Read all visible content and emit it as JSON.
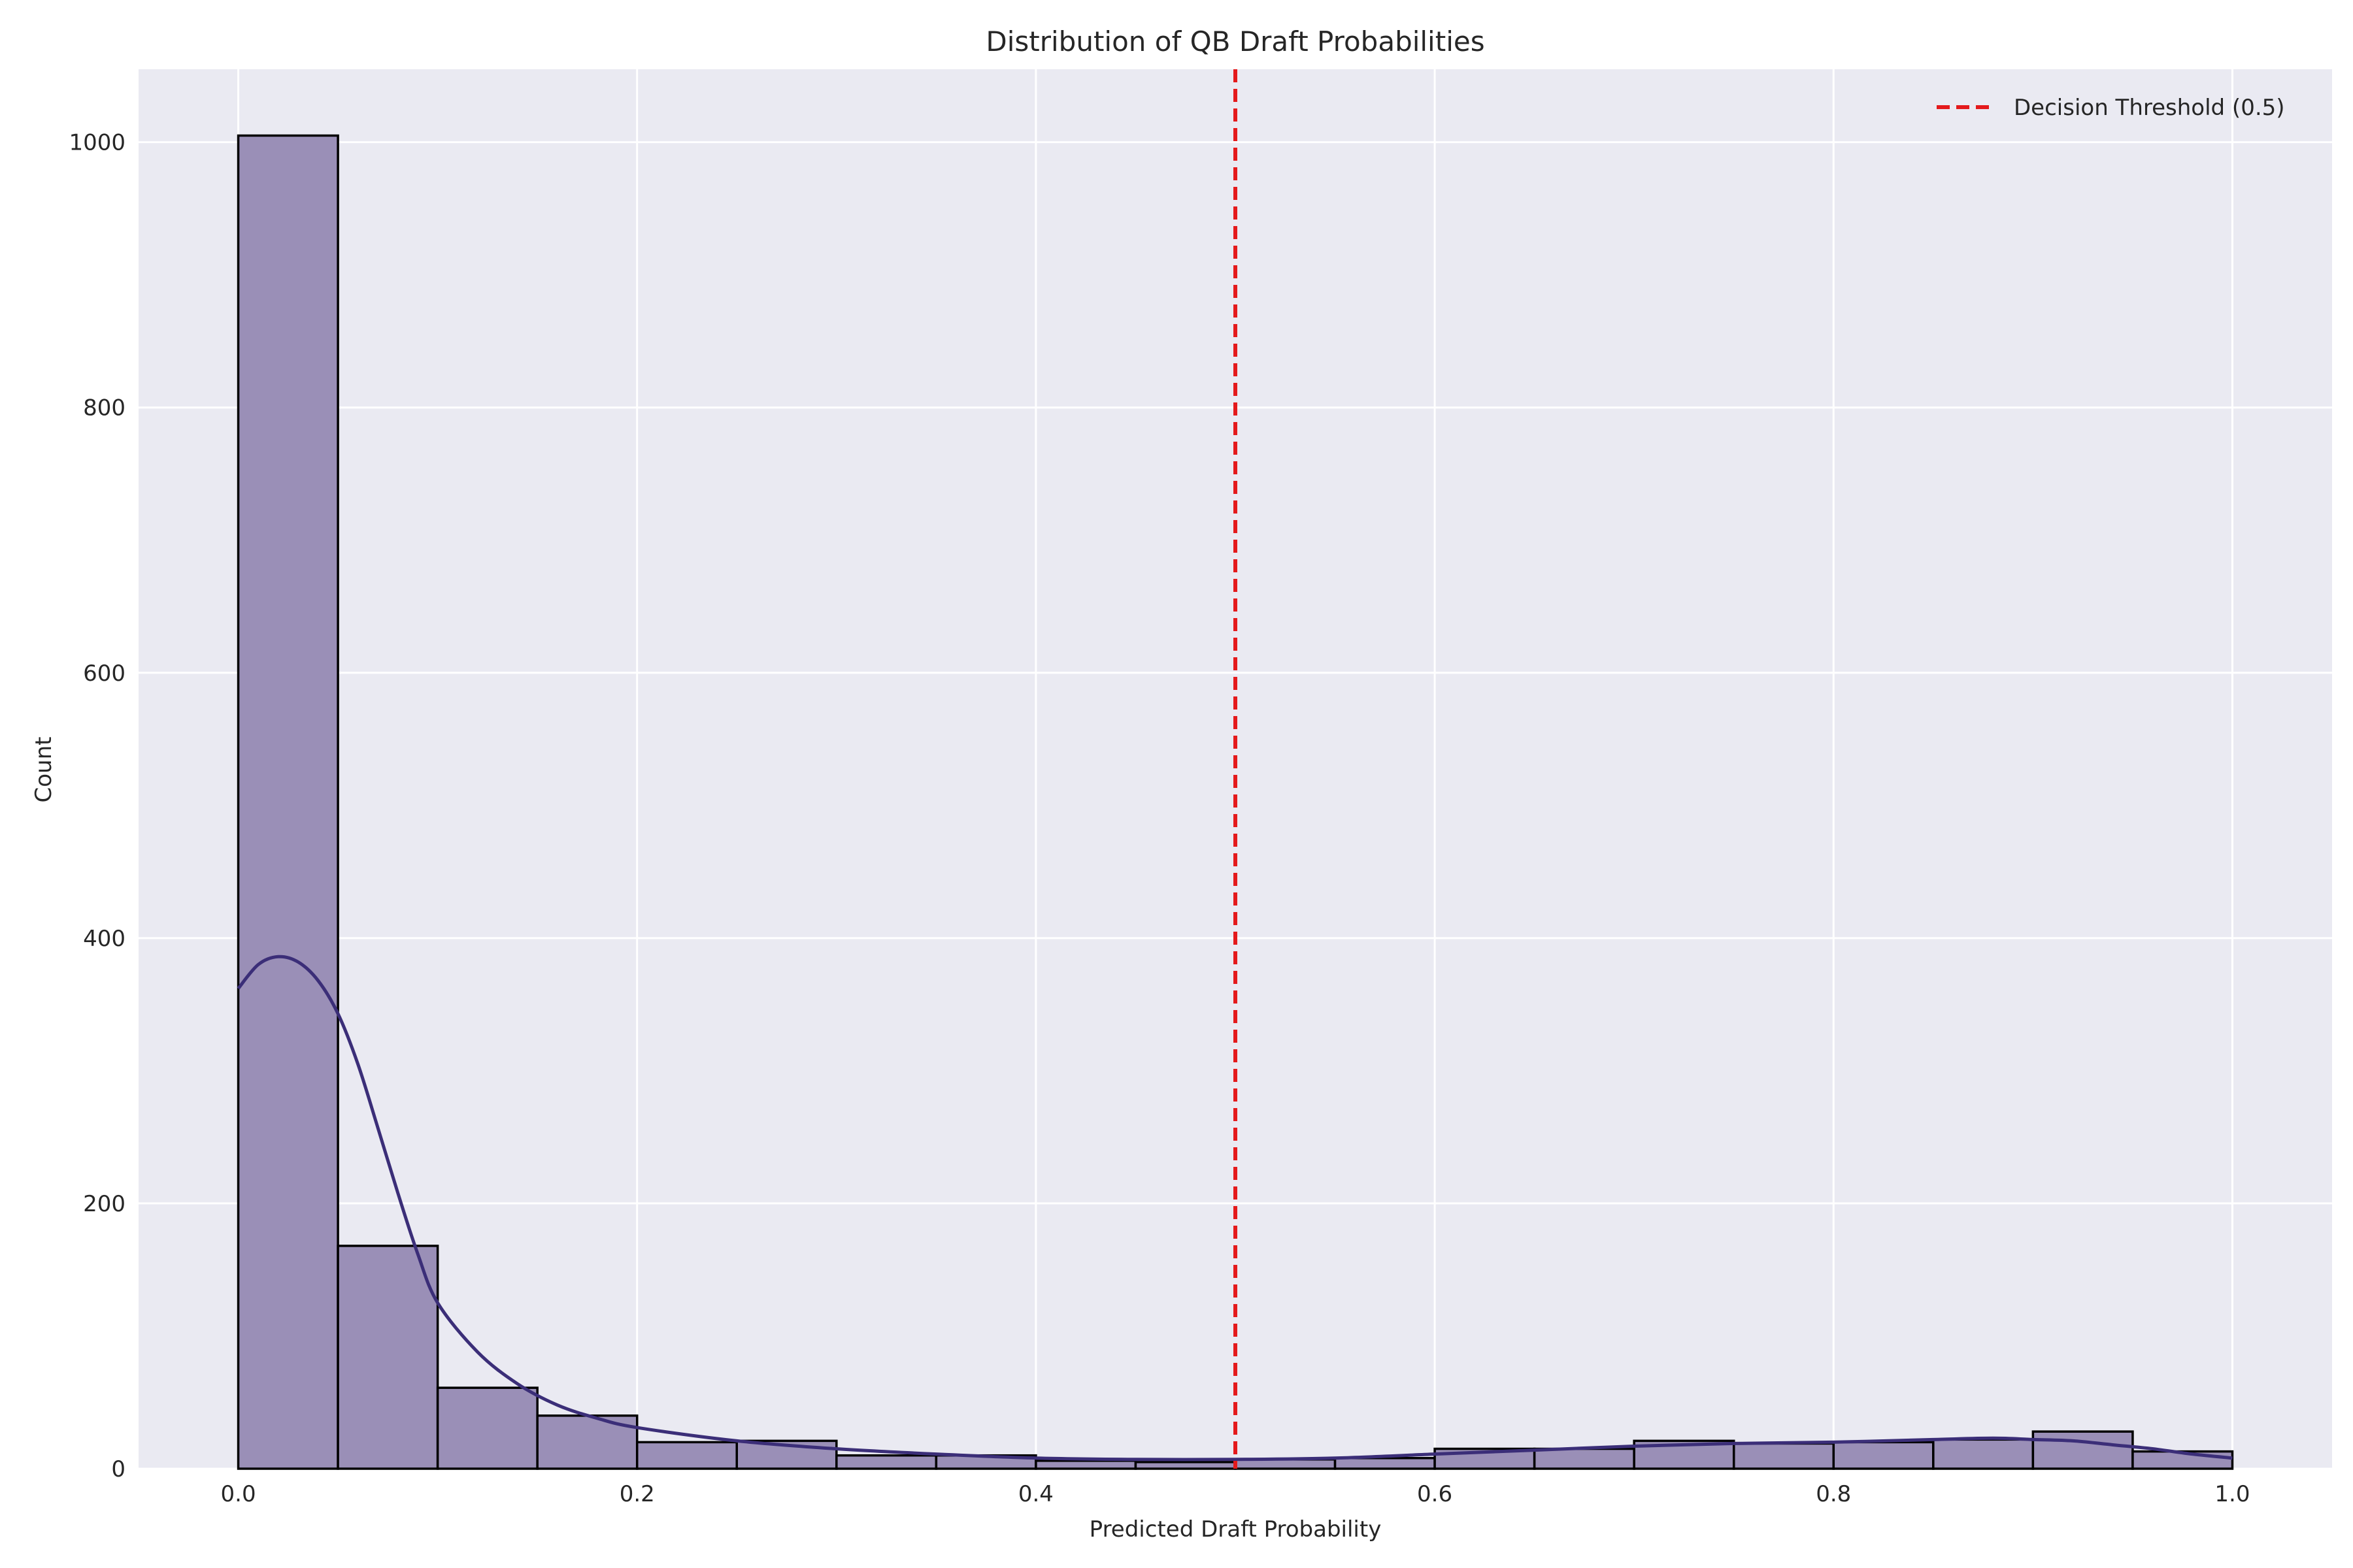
{
  "chart_data": {
    "type": "bar",
    "title": "Distribution of QB Draft Probabilities",
    "xlabel": "Predicted Draft Probability",
    "ylabel": "Count",
    "xlim": [
      -0.05,
      1.05
    ],
    "ylim": [
      0,
      1055
    ],
    "xticks": [
      0.0,
      0.2,
      0.4,
      0.6,
      0.8,
      1.0
    ],
    "xtick_labels": [
      "0.0",
      "0.2",
      "0.4",
      "0.6",
      "0.8",
      "1.0"
    ],
    "yticks": [
      0,
      200,
      400,
      600,
      800,
      1000
    ],
    "ytick_labels": [
      "0",
      "200",
      "400",
      "600",
      "800",
      "1000"
    ],
    "grid": true,
    "bin_width": 0.05,
    "bins": [
      {
        "x0": 0.0,
        "count": 1005
      },
      {
        "x0": 0.05,
        "count": 168
      },
      {
        "x0": 0.1,
        "count": 61
      },
      {
        "x0": 0.15,
        "count": 40
      },
      {
        "x0": 0.2,
        "count": 20
      },
      {
        "x0": 0.25,
        "count": 21
      },
      {
        "x0": 0.3,
        "count": 10
      },
      {
        "x0": 0.35,
        "count": 10
      },
      {
        "x0": 0.4,
        "count": 6
      },
      {
        "x0": 0.45,
        "count": 5
      },
      {
        "x0": 0.5,
        "count": 7
      },
      {
        "x0": 0.55,
        "count": 8
      },
      {
        "x0": 0.6,
        "count": 15
      },
      {
        "x0": 0.65,
        "count": 15
      },
      {
        "x0": 0.7,
        "count": 21
      },
      {
        "x0": 0.75,
        "count": 19
      },
      {
        "x0": 0.8,
        "count": 20
      },
      {
        "x0": 0.85,
        "count": 22
      },
      {
        "x0": 0.9,
        "count": 28
      },
      {
        "x0": 0.95,
        "count": 13
      }
    ],
    "kde": {
      "x": [
        0.0,
        0.01,
        0.02,
        0.03,
        0.04,
        0.05,
        0.06,
        0.07,
        0.08,
        0.09,
        0.1,
        0.12,
        0.14,
        0.16,
        0.18,
        0.2,
        0.25,
        0.3,
        0.35,
        0.4,
        0.45,
        0.5,
        0.55,
        0.6,
        0.65,
        0.7,
        0.75,
        0.8,
        0.85,
        0.88,
        0.9,
        0.92,
        0.94,
        0.96,
        0.98,
        1.0
      ],
      "y": [
        362,
        380,
        386,
        382,
        368,
        343,
        305,
        257,
        208,
        162,
        125,
        88,
        64,
        48,
        38,
        31,
        21,
        15,
        11,
        8,
        7,
        7,
        8,
        11,
        14,
        17,
        19,
        20,
        22,
        23,
        22,
        21,
        18,
        15,
        11,
        8
      ]
    },
    "threshold": {
      "x": 0.5,
      "label": "Decision Threshold (0.5)",
      "color": "#e41a1c"
    },
    "legend": {
      "placement": "top-right",
      "entries": [
        "Decision Threshold (0.5)"
      ]
    },
    "colors": {
      "background": "#eaeaf2",
      "grid": "#ffffff",
      "bar_fill": "#9a8fb7",
      "bar_edge": "#000000",
      "kde": "#3b2e78",
      "threshold": "#e41a1c"
    }
  }
}
